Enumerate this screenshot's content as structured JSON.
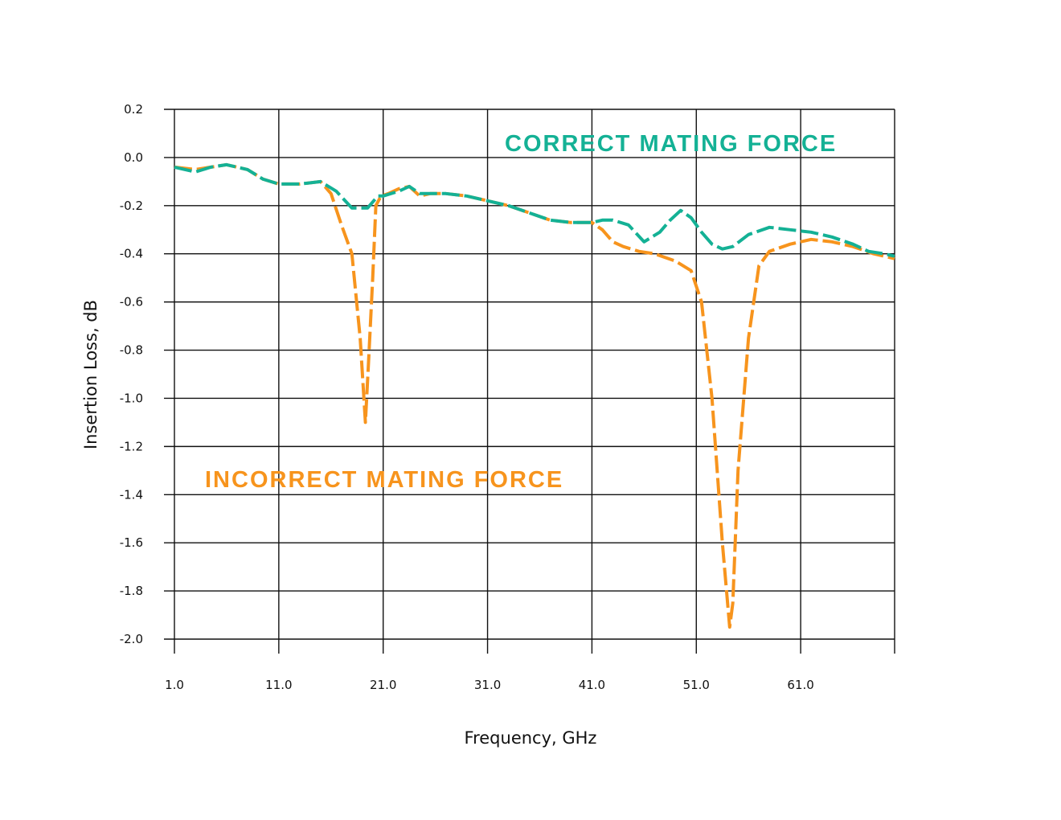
{
  "chart_data": {
    "type": "line",
    "title": "",
    "xlabel": "Frequency, GHz",
    "ylabel": "Insertion Loss, dB",
    "xlim": [
      1.0,
      70.0
    ],
    "ylim": [
      -2.0,
      0.2
    ],
    "x_ticks": [
      1.0,
      11.0,
      21.0,
      31.0,
      41.0,
      51.0,
      61.0
    ],
    "x_tick_labels": [
      "1.0",
      "11.0",
      "21.0",
      "31.0",
      "41.0",
      "51.0",
      "61.0"
    ],
    "y_ticks": [
      0.2,
      0.0,
      -0.2,
      -0.4,
      -0.6,
      -0.8,
      -1.0,
      -1.2,
      -1.4,
      -1.6,
      -1.8,
      -2.0
    ],
    "y_tick_labels": [
      "0.2",
      "0.0",
      "-0.2",
      "-0.4",
      "-0.6",
      "-0.8",
      "-1.0",
      "-1.2",
      "-1.4",
      "-1.6",
      "-1.8",
      "-2.0"
    ],
    "grid": true,
    "legend": "none",
    "series": [
      {
        "name": "CORRECT MATING FORCE",
        "color": "#14b195",
        "dashed": true,
        "x": [
          1.0,
          3.0,
          4.5,
          6.0,
          8.0,
          9.5,
          11.0,
          13.0,
          15.0,
          16.5,
          18.0,
          19.5,
          20.5,
          21.0,
          22.5,
          23.5,
          24.5,
          25.5,
          27.0,
          29.0,
          31.0,
          33.0,
          35.0,
          37.0,
          39.0,
          41.0,
          42.0,
          43.0,
          44.5,
          46.0,
          47.5,
          48.5,
          49.5,
          50.5,
          51.5,
          52.5,
          53.5,
          54.5,
          56.0,
          58.0,
          60.0,
          62.0,
          64.0,
          66.0,
          67.5,
          69.0,
          70.0
        ],
        "y": [
          -0.04,
          -0.06,
          -0.04,
          -0.03,
          -0.05,
          -0.09,
          -0.11,
          -0.11,
          -0.1,
          -0.14,
          -0.21,
          -0.21,
          -0.16,
          -0.16,
          -0.14,
          -0.12,
          -0.15,
          -0.15,
          -0.15,
          -0.16,
          -0.18,
          -0.2,
          -0.23,
          -0.26,
          -0.27,
          -0.27,
          -0.26,
          -0.26,
          -0.28,
          -0.35,
          -0.31,
          -0.26,
          -0.22,
          -0.25,
          -0.31,
          -0.36,
          -0.38,
          -0.37,
          -0.32,
          -0.29,
          -0.3,
          -0.31,
          -0.33,
          -0.36,
          -0.39,
          -0.4,
          -0.41
        ]
      },
      {
        "name": "INCORRECT MATING FORCE",
        "color": "#f7941d",
        "dashed": true,
        "x": [
          1.0,
          3.0,
          4.5,
          6.0,
          8.0,
          9.5,
          11.0,
          13.0,
          15.0,
          16.0,
          17.0,
          18.0,
          18.8,
          19.3,
          19.6,
          20.0,
          20.3,
          20.8,
          21.5,
          22.5,
          23.5,
          24.5,
          25.5,
          27.0,
          29.0,
          31.0,
          33.0,
          35.0,
          37.0,
          39.0,
          41.0,
          42.0,
          43.0,
          44.0,
          45.5,
          47.0,
          49.0,
          50.5,
          51.5,
          52.5,
          53.5,
          54.0,
          54.2,
          54.5,
          55.0,
          56.0,
          57.0,
          58.0,
          60.0,
          62.0,
          64.0,
          66.0,
          68.0,
          70.0
        ],
        "y": [
          -0.04,
          -0.05,
          -0.04,
          -0.03,
          -0.05,
          -0.09,
          -0.11,
          -0.11,
          -0.1,
          -0.15,
          -0.28,
          -0.4,
          -0.75,
          -1.1,
          -0.85,
          -0.5,
          -0.2,
          -0.16,
          -0.15,
          -0.13,
          -0.12,
          -0.16,
          -0.15,
          -0.15,
          -0.16,
          -0.18,
          -0.2,
          -0.23,
          -0.26,
          -0.27,
          -0.27,
          -0.3,
          -0.35,
          -0.37,
          -0.39,
          -0.4,
          -0.43,
          -0.47,
          -0.6,
          -1.0,
          -1.6,
          -1.85,
          -1.95,
          -1.85,
          -1.3,
          -0.75,
          -0.45,
          -0.39,
          -0.36,
          -0.34,
          -0.35,
          -0.37,
          -0.4,
          -0.42
        ]
      }
    ],
    "annotations": [
      {
        "text": "CORRECT MATING FORCE",
        "color": "#14b195"
      },
      {
        "text": "INCORRECT MATING FORCE",
        "color": "#f7941d"
      }
    ]
  }
}
